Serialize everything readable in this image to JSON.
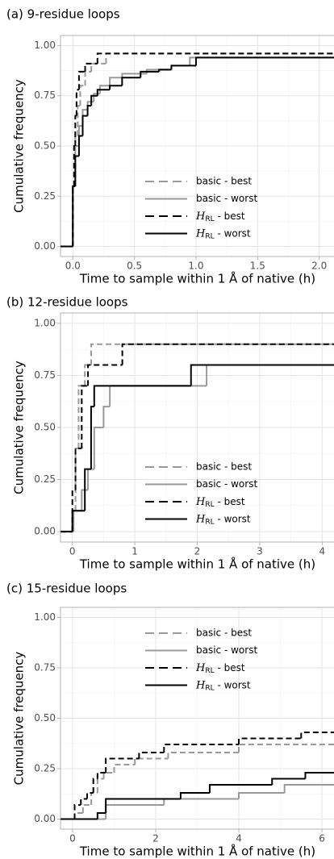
{
  "chart_data": [
    {
      "type": "step",
      "title": "(a) 9-residue loops",
      "x_label": "Time to sample within 1 Å of native (h)",
      "y_label": "Cumulative frequency",
      "xlim": [
        -0.1,
        2.12
      ],
      "ylim": [
        -0.05,
        1.05
      ],
      "xticks": [
        {
          "value": 0,
          "label": "0.0"
        },
        0.5,
        {
          "value": 1,
          "label": "1.0"
        },
        1.5,
        {
          "value": 2,
          "label": "2.0"
        }
      ],
      "yticks": [
        {
          "value": 0,
          "label": "0.00"
        },
        0.25,
        {
          "value": 0.5,
          "label": "0.50"
        },
        0.75,
        {
          "value": 1,
          "label": "1.00"
        }
      ],
      "grid": true,
      "legend": "bottom-center",
      "series": [
        {
          "name": "basic - best",
          "color": "#999999",
          "linestyle": "dashed",
          "x": [
            0,
            0.02,
            0.04,
            0.06,
            0.1,
            0.15,
            0.27
          ],
          "values": [
            0.3,
            0.55,
            0.7,
            0.8,
            0.87,
            0.91,
            0.96
          ]
        },
        {
          "name": "basic - worst",
          "color": "#999999",
          "linestyle": "solid",
          "x": [
            0,
            0.02,
            0.05,
            0.08,
            0.12,
            0.17,
            0.22,
            0.3,
            0.4,
            0.6,
            0.8,
            0.95
          ],
          "values": [
            0.3,
            0.5,
            0.6,
            0.68,
            0.72,
            0.76,
            0.8,
            0.84,
            0.86,
            0.88,
            0.9,
            0.94
          ]
        },
        {
          "name": "HRL - best",
          "color": "#000000",
          "linestyle": "dashed",
          "x": [
            0,
            0.01,
            0.02,
            0.03,
            0.05,
            0.1,
            0.2
          ],
          "values": [
            0.3,
            0.5,
            0.65,
            0.78,
            0.87,
            0.91,
            0.96
          ]
        },
        {
          "name": "HRL - worst",
          "color": "#000000",
          "linestyle": "solid",
          "x": [
            0,
            0.02,
            0.05,
            0.08,
            0.12,
            0.15,
            0.2,
            0.3,
            0.4,
            0.55,
            0.7,
            0.8,
            1.0
          ],
          "values": [
            0.3,
            0.45,
            0.55,
            0.65,
            0.7,
            0.75,
            0.78,
            0.8,
            0.84,
            0.87,
            0.88,
            0.9,
            0.94
          ]
        }
      ]
    },
    {
      "type": "step",
      "title": "(b) 12-residue loops",
      "x_label": "Time to sample within 1 Å of native (h)",
      "y_label": "Cumulative frequency",
      "xlim": [
        -0.19,
        4.19
      ],
      "ylim": [
        -0.05,
        1.05
      ],
      "xticks": [
        0,
        1,
        2,
        3,
        4
      ],
      "yticks": [
        {
          "value": 0,
          "label": "0.00"
        },
        0.25,
        {
          "value": 0.5,
          "label": "0.50"
        },
        0.75,
        {
          "value": 1,
          "label": "1.00"
        }
      ],
      "grid": true,
      "legend": "bottom-center",
      "series": [
        {
          "name": "basic - best",
          "color": "#999999",
          "linestyle": "dashed",
          "x": [
            0,
            0.05,
            0.1,
            0.2,
            0.3
          ],
          "values": [
            0.1,
            0.4,
            0.7,
            0.8,
            0.9
          ]
        },
        {
          "name": "basic - worst",
          "color": "#999999",
          "linestyle": "solid",
          "x": [
            0.02,
            0.15,
            0.25,
            0.35,
            0.5,
            0.6,
            2.15
          ],
          "values": [
            0.1,
            0.2,
            0.3,
            0.5,
            0.6,
            0.7,
            0.8
          ]
        },
        {
          "name": "HRL - best",
          "color": "#000000",
          "linestyle": "dashed",
          "x": [
            0,
            0.05,
            0.15,
            0.25,
            0.8
          ],
          "values": [
            0.2,
            0.4,
            0.7,
            0.8,
            0.9
          ]
        },
        {
          "name": "HRL - worst",
          "color": "#000000",
          "linestyle": "solid",
          "x": [
            0,
            0.2,
            0.3,
            0.35,
            1.9
          ],
          "values": [
            0.1,
            0.3,
            0.6,
            0.7,
            0.8
          ]
        }
      ]
    },
    {
      "type": "step",
      "title": "(c) 15-residue loops",
      "x_label": "Time to sample within 1 Å of native (h)",
      "y_label": "Cumulative frequency",
      "xlim": [
        -0.29,
        6.29
      ],
      "ylim": [
        -0.05,
        1.05
      ],
      "xticks": [
        0,
        2,
        4,
        6
      ],
      "yticks": [
        {
          "value": 0,
          "label": "0.00"
        },
        0.25,
        {
          "value": 0.5,
          "label": "0.50"
        },
        0.75,
        {
          "value": 1,
          "label": "1.00"
        }
      ],
      "grid": true,
      "legend": "top-center",
      "series": [
        {
          "name": "basic - best",
          "color": "#999999",
          "linestyle": "dashed",
          "x": [
            0.05,
            0.25,
            0.45,
            0.6,
            0.75,
            1.0,
            1.5,
            2.3,
            4.0
          ],
          "values": [
            0.03,
            0.07,
            0.13,
            0.2,
            0.23,
            0.27,
            0.3,
            0.33,
            0.37
          ]
        },
        {
          "name": "basic - worst",
          "color": "#999999",
          "linestyle": "solid",
          "x": [
            0.8,
            2.2,
            4.0,
            5.1
          ],
          "values": [
            0.07,
            0.1,
            0.13,
            0.17
          ]
        },
        {
          "name": "HRL - best",
          "color": "#000000",
          "linestyle": "dashed",
          "x": [
            0.05,
            0.2,
            0.35,
            0.5,
            0.6,
            0.8,
            1.6,
            2.2,
            4.0,
            5.5
          ],
          "values": [
            0.07,
            0.1,
            0.13,
            0.2,
            0.23,
            0.3,
            0.33,
            0.37,
            0.4,
            0.43
          ]
        },
        {
          "name": "HRL - worst",
          "color": "#000000",
          "linestyle": "solid",
          "x": [
            0.6,
            0.8,
            2.6,
            3.3,
            4.8,
            5.6
          ],
          "values": [
            0.03,
            0.1,
            0.13,
            0.17,
            0.2,
            0.23
          ]
        }
      ]
    }
  ]
}
